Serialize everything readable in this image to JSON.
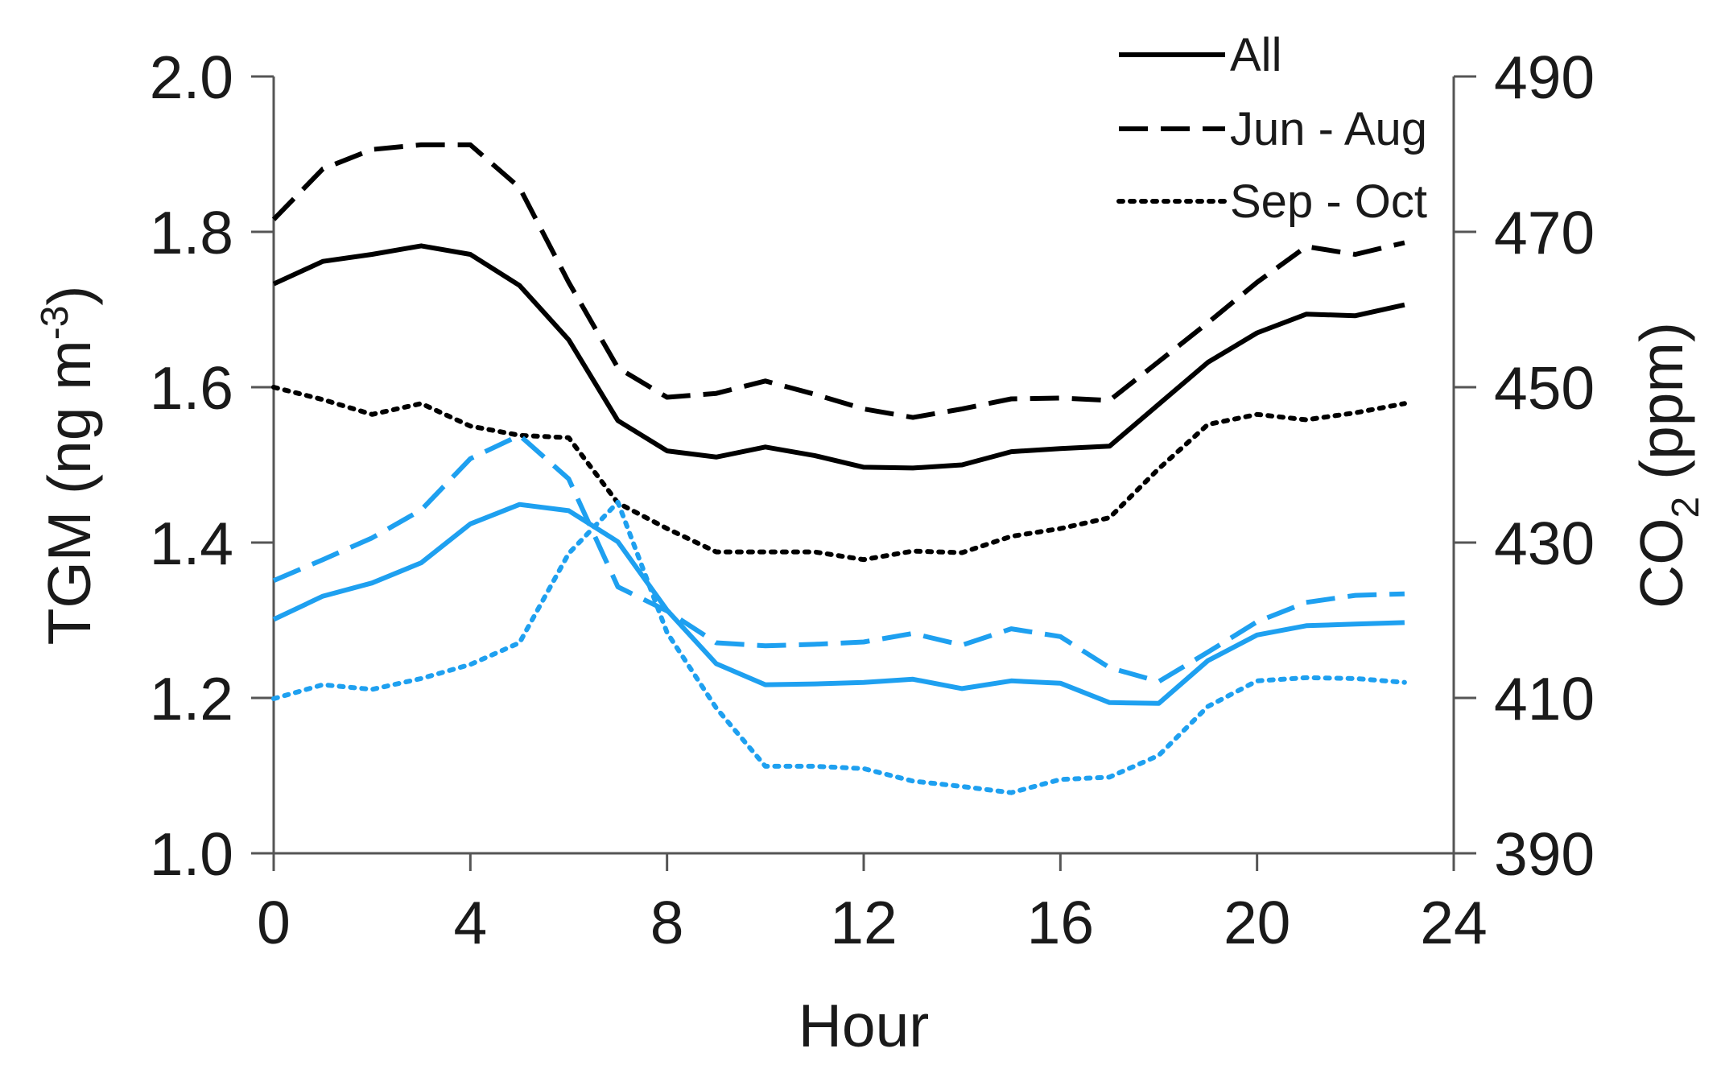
{
  "chart_data": {
    "type": "line",
    "title": "",
    "xlabel": "Hour",
    "ylabel": {
      "main": "TGM (ng m",
      "sup": "-3",
      "tail": ")"
    },
    "y2label": {
      "main": "CO",
      "sub": "2",
      "tail": " (ppm)"
    },
    "xlim": [
      0,
      24
    ],
    "ylim": [
      1.0,
      2.0
    ],
    "y2lim": [
      390,
      490
    ],
    "xticks": [
      "0",
      "4",
      "8",
      "12",
      "16",
      "20",
      "24"
    ],
    "yticks": [
      "1.0",
      "1.2",
      "1.4",
      "1.6",
      "1.8",
      "2.0"
    ],
    "y2ticks": [
      "390",
      "410",
      "430",
      "450",
      "470",
      "490"
    ],
    "legend": {
      "position": "top-right",
      "entries": [
        {
          "label": "All",
          "style": "solid"
        },
        {
          "label": "Jun - Aug",
          "style": "dashed"
        },
        {
          "label": "Sep - Oct",
          "style": "dotted"
        }
      ]
    },
    "x": [
      0,
      1,
      2,
      3,
      4,
      5,
      6,
      7,
      8,
      9,
      10,
      11,
      12,
      13,
      14,
      15,
      16,
      17,
      18,
      19,
      20,
      21,
      22,
      23
    ],
    "series": [
      {
        "name": "All",
        "quantity": "TGM",
        "axis": "left",
        "color": "#000000",
        "style": "solid",
        "values": [
          1.733,
          1.762,
          1.771,
          1.782,
          1.771,
          1.731,
          1.661,
          1.557,
          1.518,
          1.51,
          1.523,
          1.512,
          1.497,
          1.496,
          1.5,
          1.517,
          1.521,
          1.524,
          1.578,
          1.632,
          1.67,
          1.694,
          1.692,
          1.706
        ]
      },
      {
        "name": "Jun - Aug",
        "quantity": "TGM",
        "axis": "left",
        "color": "#000000",
        "style": "dashed",
        "values": [
          1.816,
          1.881,
          1.906,
          1.912,
          1.912,
          1.857,
          1.735,
          1.625,
          1.587,
          1.592,
          1.608,
          1.591,
          1.572,
          1.561,
          1.572,
          1.585,
          1.586,
          1.583,
          1.633,
          1.683,
          1.735,
          1.781,
          1.771,
          1.786
        ]
      },
      {
        "name": "Sep - Oct",
        "quantity": "TGM",
        "axis": "left",
        "color": "#000000",
        "style": "dotted",
        "values": [
          1.6,
          1.584,
          1.565,
          1.579,
          1.55,
          1.538,
          1.535,
          1.451,
          1.418,
          1.388,
          1.388,
          1.388,
          1.378,
          1.389,
          1.387,
          1.408,
          1.418,
          1.432,
          1.495,
          1.552,
          1.565,
          1.558,
          1.567,
          1.579
        ]
      },
      {
        "name": "All",
        "quantity": "CO2",
        "axis": "right",
        "color": "#1ea0f0",
        "style": "solid",
        "values": [
          420.1,
          423.1,
          424.8,
          427.4,
          432.4,
          434.9,
          434.1,
          430.1,
          421.3,
          414.4,
          411.7,
          411.8,
          412.0,
          412.4,
          411.2,
          412.2,
          411.9,
          409.4,
          409.3,
          414.8,
          418.1,
          419.3,
          419.5,
          419.7
        ]
      },
      {
        "name": "Jun - Aug",
        "quantity": "CO2",
        "axis": "right",
        "color": "#1ea0f0",
        "style": "dashed",
        "values": [
          425.1,
          427.8,
          430.6,
          434.2,
          440.8,
          443.8,
          438.2,
          424.3,
          421.2,
          417.1,
          416.7,
          416.9,
          417.2,
          418.3,
          416.8,
          418.9,
          417.9,
          413.9,
          412.1,
          415.9,
          419.8,
          422.3,
          423.2,
          423.4
        ]
      },
      {
        "name": "Sep - Oct",
        "quantity": "CO2",
        "axis": "right",
        "color": "#1ea0f0",
        "style": "dotted",
        "values": [
          409.9,
          411.7,
          411.1,
          412.5,
          414.3,
          417.1,
          428.6,
          435.2,
          418.4,
          408.7,
          401.2,
          401.2,
          400.9,
          399.3,
          398.6,
          397.8,
          399.5,
          399.8,
          402.6,
          408.9,
          412.2,
          412.6,
          412.5,
          412.0
        ]
      }
    ]
  }
}
